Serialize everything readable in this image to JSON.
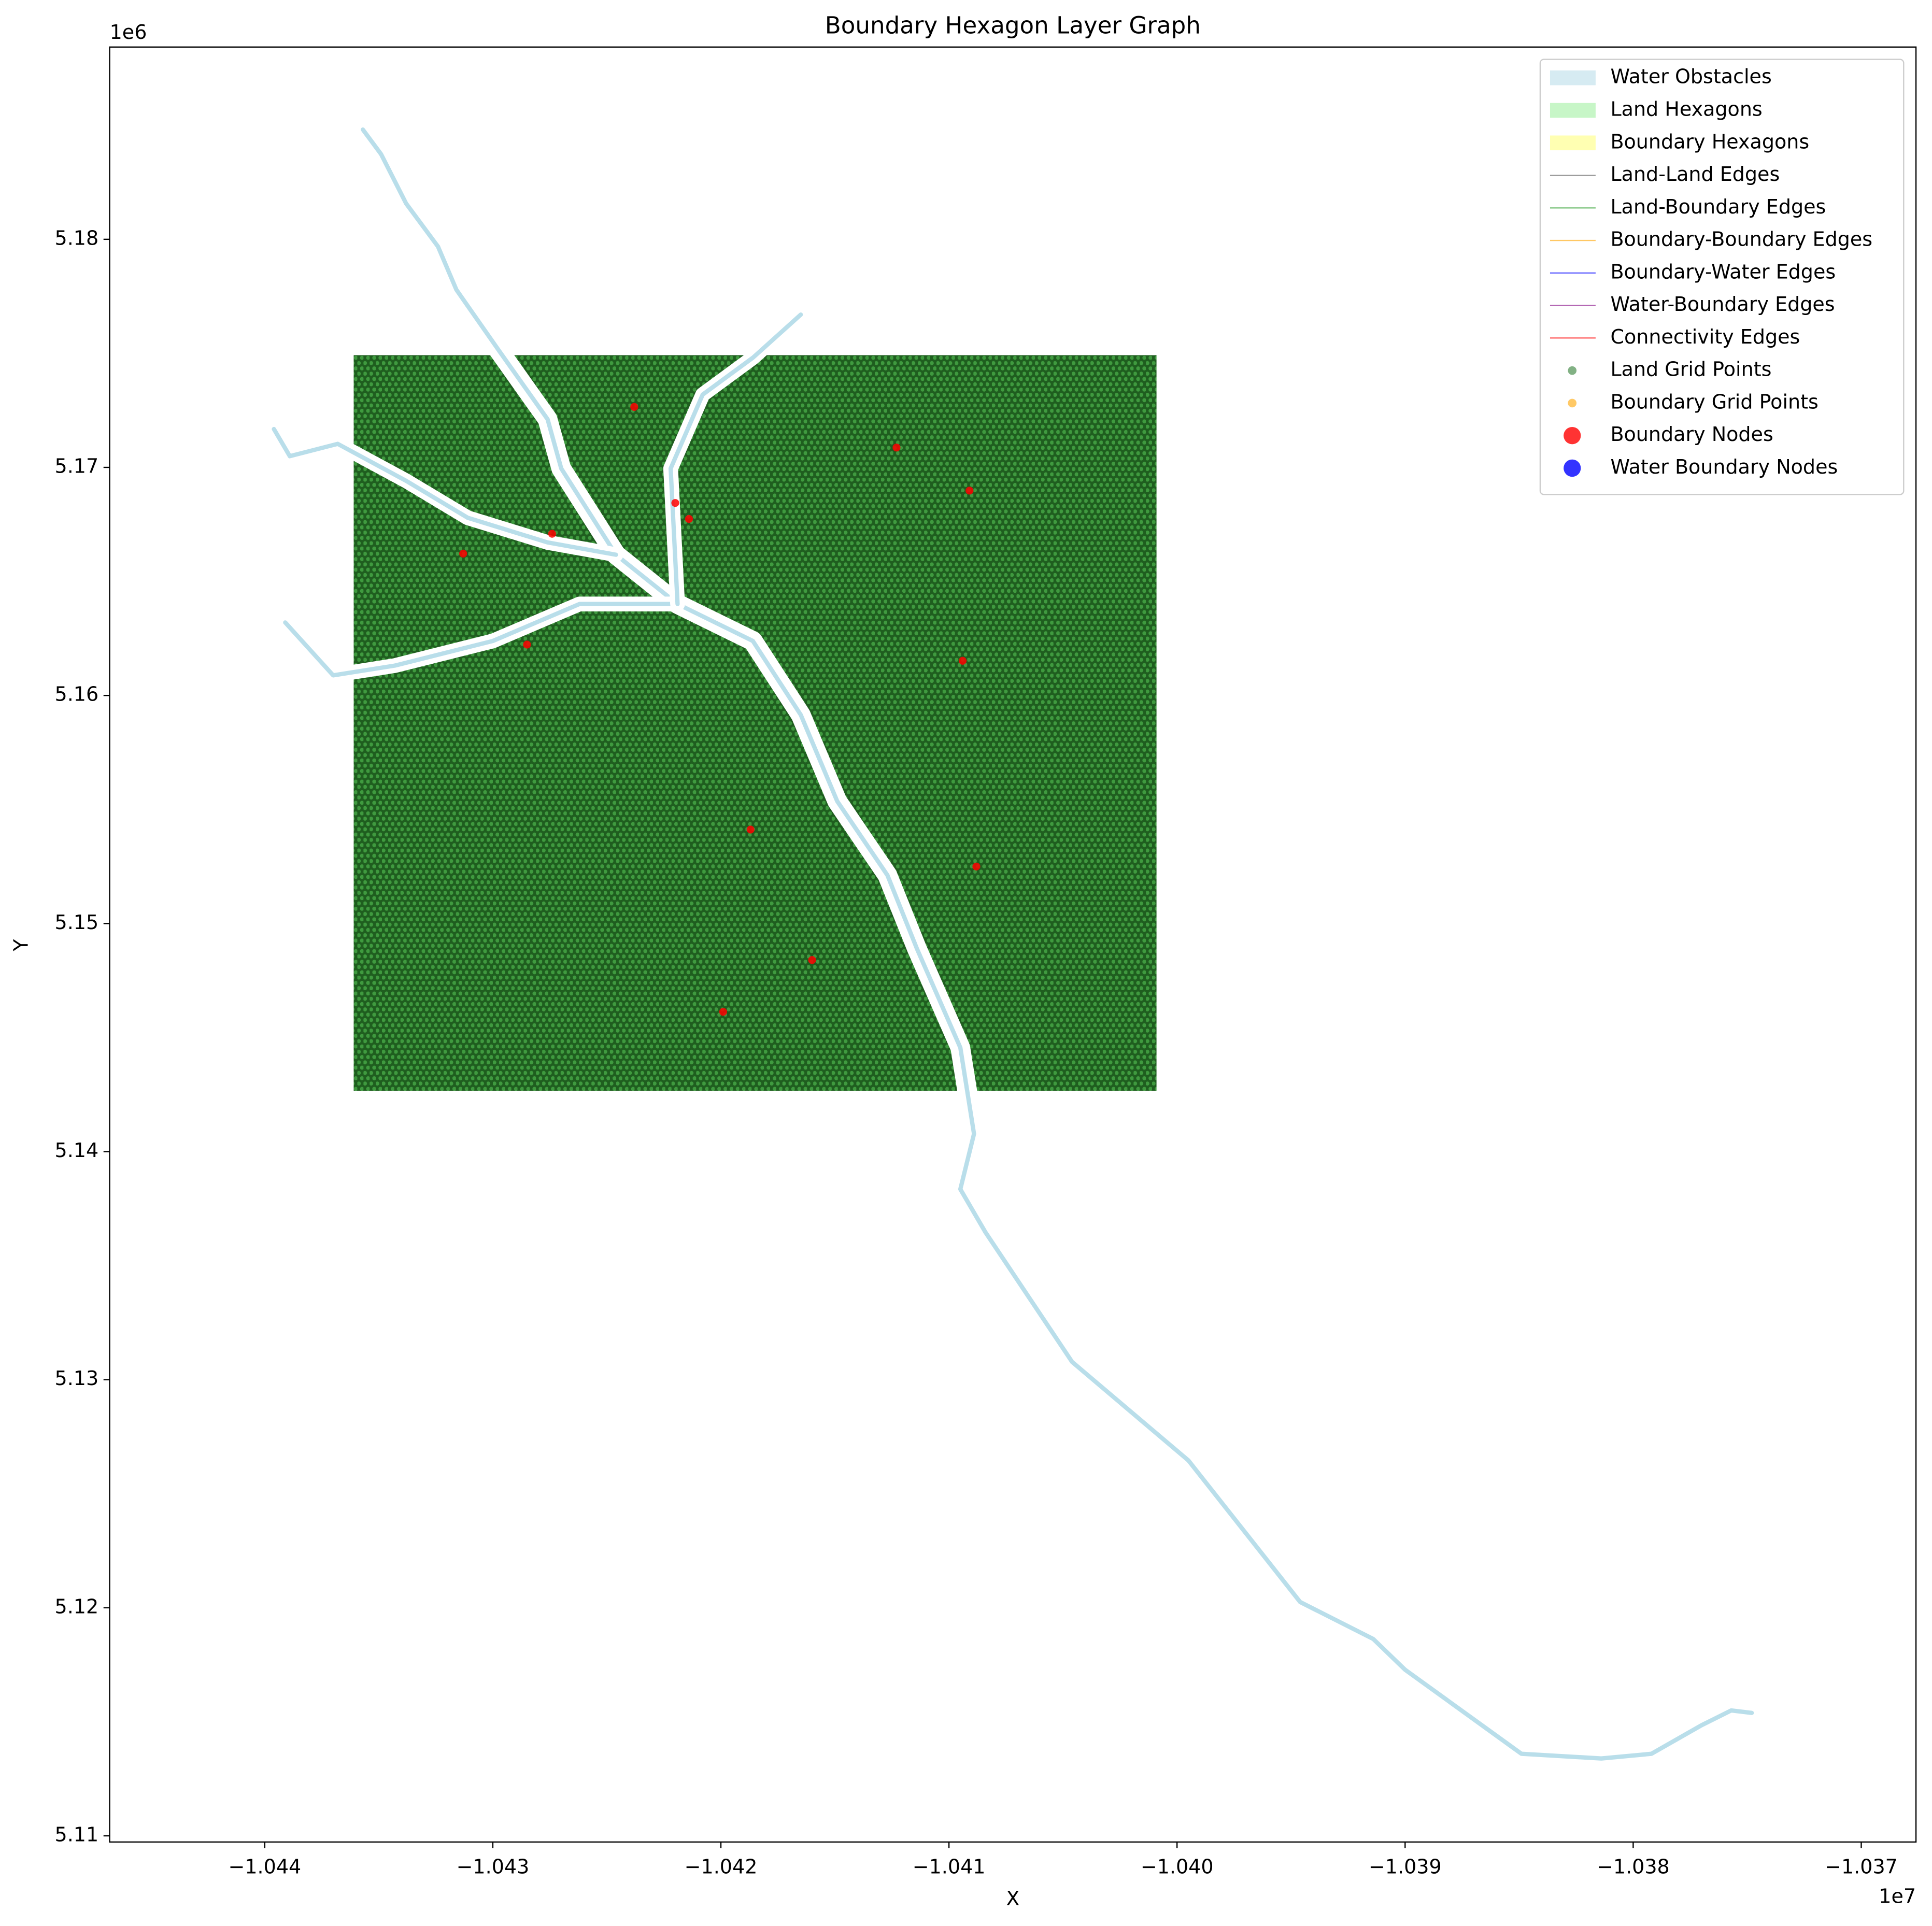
{
  "chart_data": {
    "type": "map",
    "title": "Boundary Hexagon Layer Graph",
    "xlabel": "X",
    "ylabel": "Y",
    "x_offset_label": "1e7",
    "y_offset_label": "1e6",
    "xlim": [
      -1.04468,
      -1.03676
    ],
    "ylim": [
      5.10973,
      5.18843
    ],
    "xticks": [
      {
        "value": -1.044,
        "label": "−1.044"
      },
      {
        "value": -1.043,
        "label": "−1.043"
      },
      {
        "value": -1.042,
        "label": "−1.042"
      },
      {
        "value": -1.041,
        "label": "−1.041"
      },
      {
        "value": -1.04,
        "label": "−1.040"
      },
      {
        "value": -1.039,
        "label": "−1.039"
      },
      {
        "value": -1.038,
        "label": "−1.038"
      },
      {
        "value": -1.037,
        "label": "−1.037"
      }
    ],
    "yticks": [
      5.11,
      5.12,
      5.13,
      5.14,
      5.15,
      5.16,
      5.17,
      5.18
    ],
    "legend": "upper right",
    "series": [
      {
        "name": "Water Obstacles",
        "color": "#add8e6",
        "kind": "patch",
        "lines": [
          {
            "x": [
              -1.04357,
              -1.04349,
              -1.04338,
              -1.04324,
              -1.04316,
              -1.04297,
              -1.04276,
              -1.0427,
              -1.04246,
              -1.04219,
              -1.04186,
              -1.04165,
              -1.04149,
              -1.04127,
              -1.04114,
              -1.04095,
              -1.04089,
              -1.04095,
              -1.04084,
              -1.04046,
              -1.03995,
              -1.03946,
              -1.03914,
              -1.039,
              -1.03849,
              -1.03814,
              -1.03792,
              -1.0377,
              -1.03757,
              -1.03748
            ],
            "y": [
              5.18481,
              5.18373,
              5.18157,
              5.17968,
              5.17779,
              5.17508,
              5.17211,
              5.16995,
              5.16617,
              5.16401,
              5.16239,
              5.15915,
              5.15536,
              5.15212,
              5.14888,
              5.14456,
              5.14078,
              5.13835,
              5.13646,
              5.13078,
              5.12646,
              5.12025,
              5.11863,
              5.11728,
              5.1136,
              5.11339,
              5.1136,
              5.11485,
              5.1155,
              5.11539
            ]
          },
          {
            "x": [
              -1.04396,
              -1.04389,
              -1.04368,
              -1.04338,
              -1.04311,
              -1.04276,
              -1.04246
            ],
            "y": [
              5.17168,
              5.17049,
              5.17103,
              5.16941,
              5.16779,
              5.16671,
              5.16617
            ]
          },
          {
            "x": [
              -1.04391,
              -1.0437,
              -1.04343,
              -1.043,
              -1.04262,
              -1.04219
            ],
            "y": [
              5.1632,
              5.16088,
              5.16131,
              5.16239,
              5.16401,
              5.16401
            ]
          },
          {
            "x": [
              -1.04165,
              -1.04186,
              -1.04208,
              -1.04222,
              -1.04219
            ],
            "y": [
              5.1767,
              5.17481,
              5.17319,
              5.16995,
              5.16401
            ]
          }
        ]
      },
      {
        "name": "Land Hexagons",
        "color": "#90ee90",
        "kind": "patch"
      },
      {
        "name": "Boundary Hexagons",
        "color": "#ffff66",
        "kind": "patch"
      },
      {
        "name": "Land-Land Edges",
        "color": "#555555",
        "kind": "line"
      },
      {
        "name": "Land-Boundary Edges",
        "color": "#2ca02c",
        "kind": "line"
      },
      {
        "name": "Boundary-Boundary Edges",
        "color": "#ffa500",
        "kind": "line"
      },
      {
        "name": "Boundary-Water Edges",
        "color": "#0000ff",
        "kind": "line"
      },
      {
        "name": "Water-Boundary Edges",
        "color": "#800080",
        "kind": "line"
      },
      {
        "name": "Connectivity Edges",
        "color": "#ff0000",
        "kind": "line"
      },
      {
        "name": "Land Grid Points",
        "color": "#2e7d32",
        "kind": "dot",
        "xlim": [
          -1.04361,
          -1.04009
        ],
        "ylim": [
          5.14267,
          5.17492
        ]
      },
      {
        "name": "Boundary Grid Points",
        "color": "#ffa500",
        "kind": "dot"
      },
      {
        "name": "Boundary Nodes",
        "color": "#ff0000",
        "kind": "node",
        "x": [
          -1.04238,
          -1.0422,
          -1.04214,
          -1.04123,
          -1.04091,
          -1.04313,
          -1.04274,
          -1.04285,
          -1.04094,
          -1.04187,
          -1.04088,
          -1.0416,
          -1.04199
        ],
        "y": [
          5.17265,
          5.16844,
          5.16774,
          5.17087,
          5.16898,
          5.16622,
          5.16709,
          5.16223,
          5.16152,
          5.15412,
          5.1525,
          5.1484,
          5.14613
        ]
      },
      {
        "name": "Water Boundary Nodes",
        "color": "#0000ff",
        "kind": "node"
      }
    ]
  }
}
